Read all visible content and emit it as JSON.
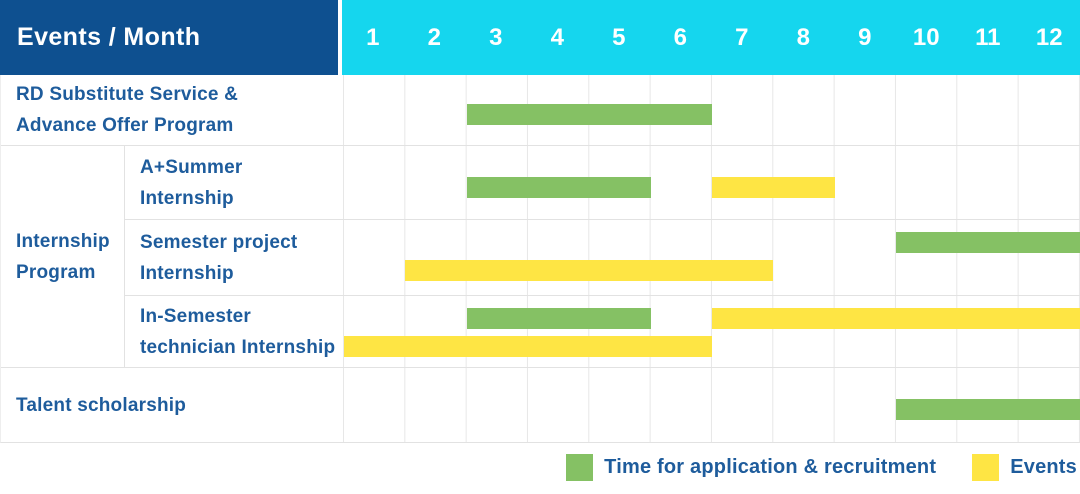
{
  "header": {
    "title": "Events / Month"
  },
  "colors": {
    "header_blue": "#0e5090",
    "month_strip_cyan": "#15d6ee",
    "application_green": "#85c164",
    "events_yellow": "#fee544",
    "label_text_blue": "#1e5c9c",
    "grid_line": "#e7e7e7"
  },
  "chart_data": {
    "type": "bar",
    "subtype": "gantt-schedule",
    "title": "Events / Month",
    "x": {
      "label": "Month",
      "ticks": [
        "1",
        "2",
        "3",
        "4",
        "5",
        "6",
        "7",
        "8",
        "9",
        "10",
        "11",
        "12"
      ],
      "range": [
        1,
        12
      ]
    },
    "bar_kinds": {
      "application": {
        "label": "Time for application & recruitment",
        "color": "#85c164"
      },
      "events": {
        "label": "Events",
        "color": "#fee544"
      }
    },
    "groups": [
      {
        "group_label": null,
        "group_label_lines": [],
        "rows": [
          {
            "label": "RD Substitute Service & Advance Offer Program",
            "label_lines": [
              "RD Substitute Service &",
              "Advance Offer Program"
            ],
            "bars": [
              {
                "kind": "application",
                "start": 3,
                "end": 6,
                "lane": "mid"
              }
            ]
          }
        ]
      },
      {
        "group_label": "Internship Program",
        "group_label_lines": [
          "Internship",
          "Program"
        ],
        "rows": [
          {
            "label": "A+Summer Internship",
            "label_lines": [
              "A+Summer",
              "Internship"
            ],
            "bars": [
              {
                "kind": "application",
                "start": 3,
                "end": 5,
                "lane": "mid"
              },
              {
                "kind": "events",
                "start": 7,
                "end": 8,
                "lane": "mid"
              }
            ]
          },
          {
            "label": "Semester project Internship",
            "label_lines": [
              "Semester project",
              "Internship"
            ],
            "bars": [
              {
                "kind": "application",
                "start": 10,
                "end": 12,
                "lane": "top"
              },
              {
                "kind": "events",
                "start": 2,
                "end": 7,
                "lane": "bottom"
              }
            ]
          },
          {
            "label": "In-Semester technician Internship",
            "label_lines": [
              "In-Semester",
              "technician Internship"
            ],
            "bars": [
              {
                "kind": "application",
                "start": 3,
                "end": 5,
                "lane": "top"
              },
              {
                "kind": "events",
                "start": 7,
                "end": 12,
                "lane": "top"
              },
              {
                "kind": "events",
                "start": 1,
                "end": 6,
                "lane": "bottom"
              }
            ]
          }
        ]
      },
      {
        "group_label": null,
        "group_label_lines": [],
        "rows": [
          {
            "label": "Talent scholarship",
            "label_lines": [
              "Talent scholarship"
            ],
            "bars": [
              {
                "kind": "application",
                "start": 10,
                "end": 12,
                "lane": "mid"
              }
            ]
          }
        ]
      }
    ],
    "legend": [
      {
        "kind": "application",
        "label": "Time for application & recruitment",
        "color": "#85c164"
      },
      {
        "kind": "events",
        "label": "Events",
        "color": "#fee544"
      }
    ],
    "legend_position": "bottom-right",
    "grid": true
  }
}
